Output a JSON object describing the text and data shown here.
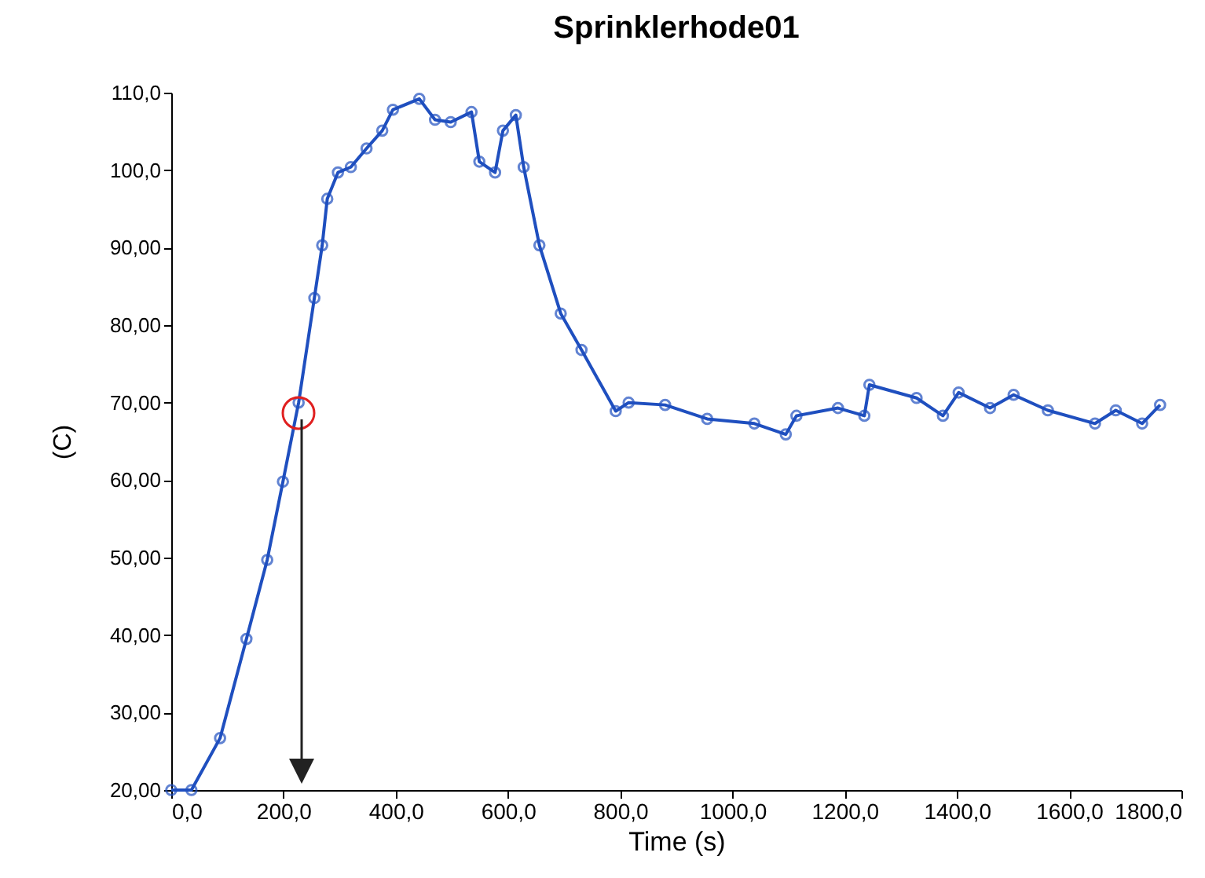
{
  "chart_data": {
    "type": "line",
    "title": "Sprinklerhode01",
    "xlabel": "Time (s)",
    "ylabel": "(C)",
    "marker": "circle",
    "grid": false,
    "legend": false,
    "xlim": [
      0,
      1800
    ],
    "xticks": [
      {
        "value": 0,
        "label": "0,0"
      },
      {
        "value": 200,
        "label": "200,0"
      },
      {
        "value": 400,
        "label": "400,0"
      },
      {
        "value": 600,
        "label": "600,0"
      },
      {
        "value": 800,
        "label": "800,0"
      },
      {
        "value": 1000,
        "label": "1000,0"
      },
      {
        "value": 1200,
        "label": "1200,0"
      },
      {
        "value": 1400,
        "label": "1400,0"
      },
      {
        "value": 1600,
        "label": "1600,0"
      },
      {
        "value": 1800,
        "label": "1800,0"
      }
    ],
    "ylim": [
      20,
      110
    ],
    "yticks": [
      {
        "value": 20,
        "label": "20,00"
      },
      {
        "value": 30,
        "label": "30,00"
      },
      {
        "value": 40,
        "label": "40,00"
      },
      {
        "value": 50,
        "label": "50,00"
      },
      {
        "value": 60,
        "label": "60,00"
      },
      {
        "value": 70,
        "label": "70,00"
      },
      {
        "value": 80,
        "label": "80,00"
      },
      {
        "value": 90,
        "label": "90,00"
      },
      {
        "value": 100,
        "label": "100,0"
      },
      {
        "value": 110,
        "label": "110,0"
      }
    ],
    "x": [
      0,
      36,
      87,
      134,
      171,
      199,
      227,
      255,
      269,
      278,
      297,
      320,
      348,
      376,
      395,
      442,
      470,
      498,
      535,
      549,
      577,
      591,
      614,
      628,
      656,
      694,
      731,
      792,
      815,
      880,
      955,
      1039,
      1095,
      1114,
      1188,
      1235,
      1244,
      1328,
      1375,
      1403,
      1459,
      1501,
      1562,
      1646,
      1683,
      1730,
      1762
    ],
    "series": [
      {
        "color": "#1f4fbf",
        "values": [
          20,
          20,
          26.7,
          39.5,
          49.7,
          59.8,
          70,
          83.5,
          90.3,
          96.3,
          99.7,
          100.4,
          102.8,
          105.1,
          107.8,
          109.2,
          106.5,
          106.2,
          107.5,
          101.1,
          99.7,
          105.1,
          107.1,
          100.4,
          90.3,
          81.5,
          76.8,
          68.9,
          70,
          69.7,
          67.9,
          67.3,
          65.9,
          68.3,
          69.3,
          68.3,
          72.3,
          70.6,
          68.3,
          71.3,
          69.3,
          71,
          69,
          67.3,
          69,
          67.3,
          69.7
        ]
      }
    ]
  }
}
